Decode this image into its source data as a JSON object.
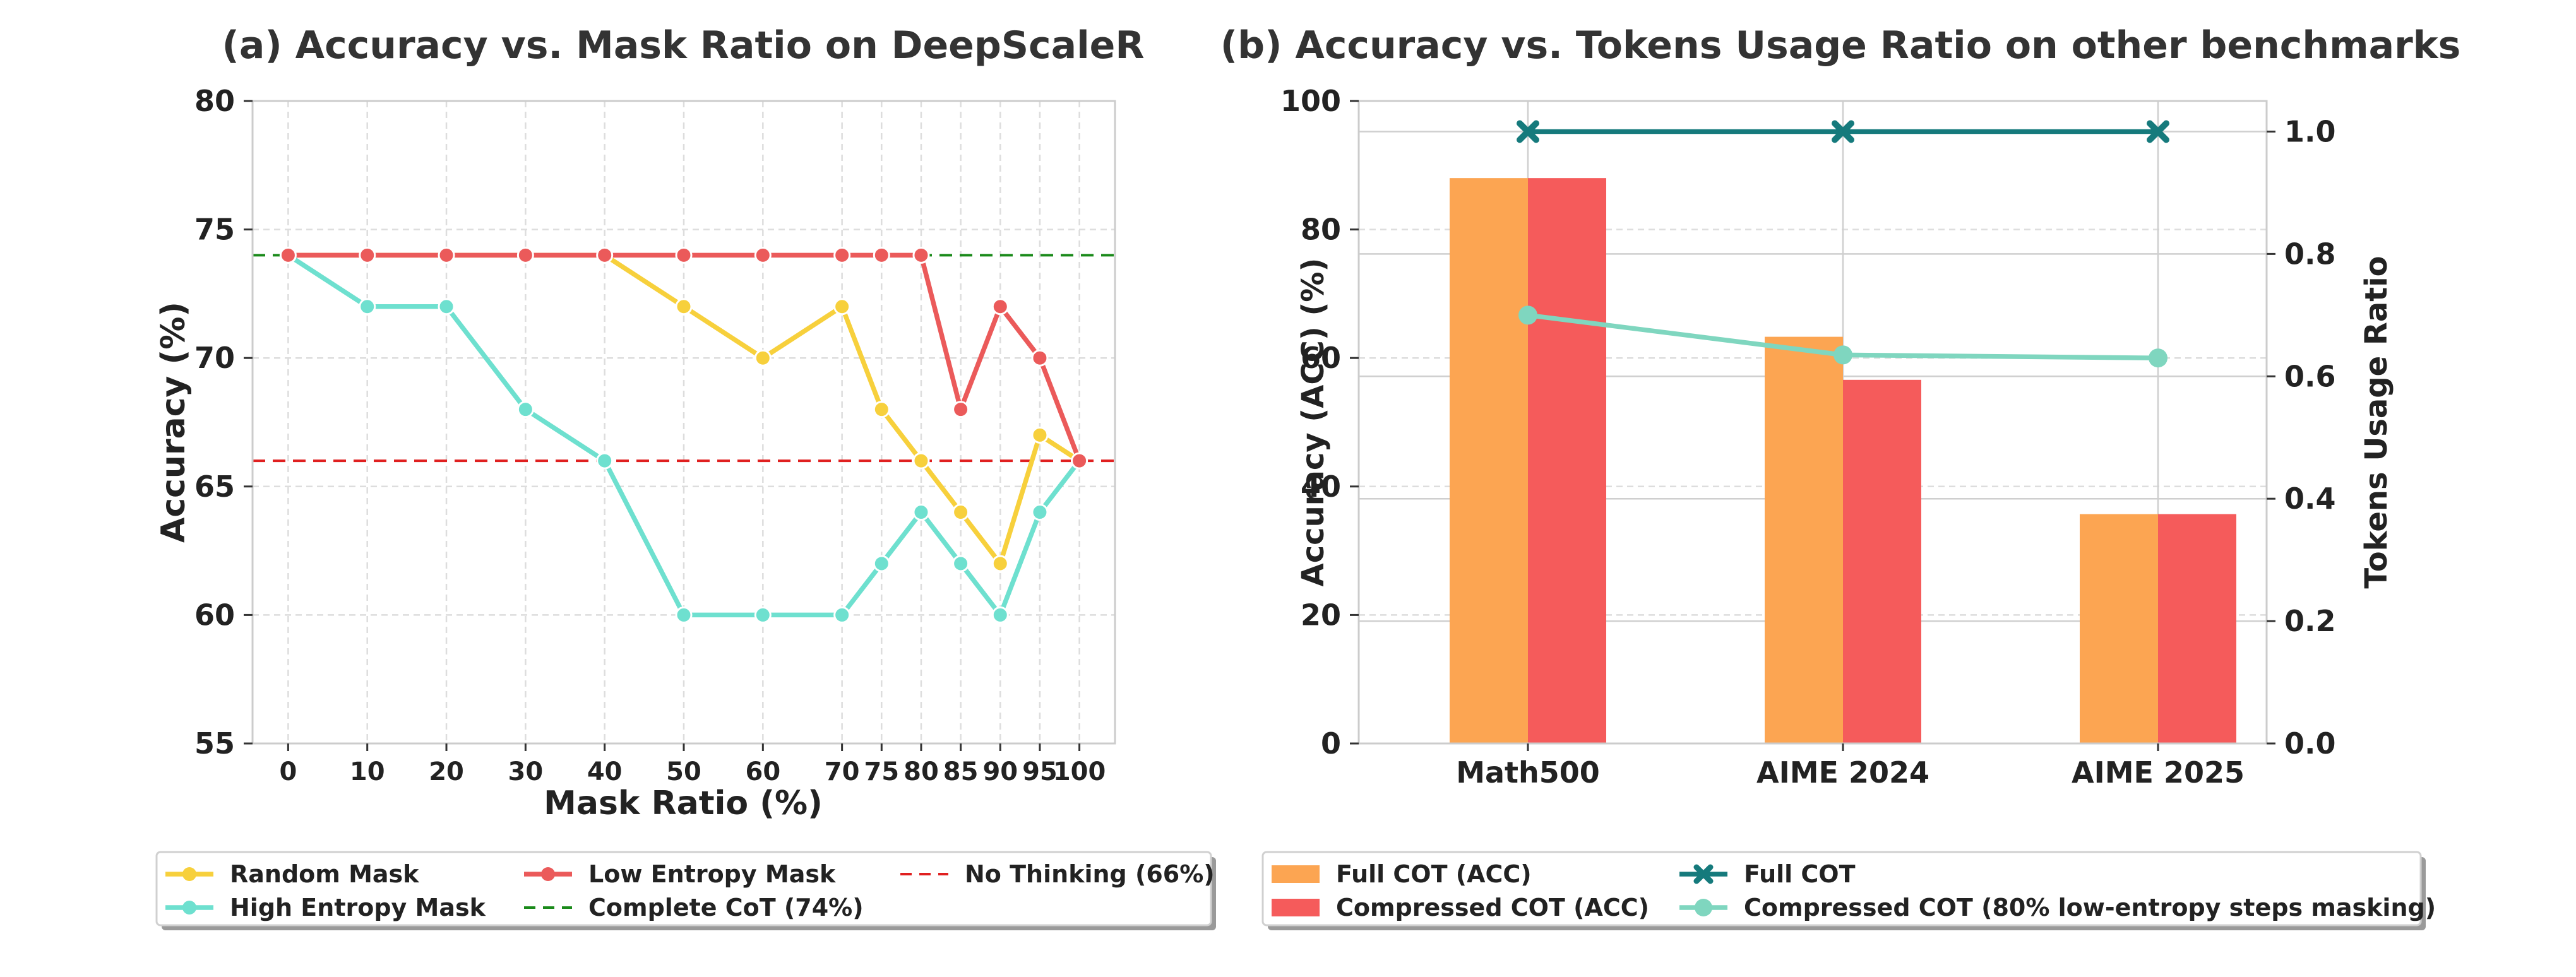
{
  "chart_data": [
    {
      "type": "line",
      "title": "(a) Accuracy vs. Mask Ratio on DeepScaleR",
      "xlabel": "Mask Ratio (%)",
      "ylabel": "Accuracy (%)",
      "ylim": [
        55,
        80
      ],
      "yticks": [
        "55",
        "60",
        "65",
        "70",
        "75",
        "80"
      ],
      "x": [
        0,
        10,
        20,
        30,
        40,
        50,
        60,
        70,
        75,
        80,
        85,
        90,
        95,
        100
      ],
      "xtick_labels": [
        "0",
        "10",
        "20",
        "30",
        "40",
        "50",
        "60",
        "70",
        "75",
        "80",
        "85",
        "90",
        "95",
        "100"
      ],
      "grid": true,
      "legend_position": "below",
      "series": [
        {
          "name": "Random Mask",
          "color": "#f7d03c",
          "marker": "circle",
          "x": [
            0,
            10,
            20,
            30,
            40,
            50,
            60,
            70,
            75,
            80,
            85,
            90,
            95,
            100
          ],
          "values": [
            74,
            74,
            74,
            74,
            74,
            72,
            70,
            72,
            68,
            66,
            64,
            62,
            67,
            66
          ]
        },
        {
          "name": "High Entropy Mask",
          "color": "#6ee0cf",
          "marker": "circle",
          "x": [
            0,
            10,
            20,
            30,
            40,
            50,
            60,
            70,
            75,
            80,
            85,
            90,
            95,
            100
          ],
          "values": [
            74,
            72,
            72,
            68,
            66,
            60,
            60,
            60,
            62,
            64,
            62,
            60,
            64,
            66
          ]
        },
        {
          "name": "Low Entropy Mask",
          "color": "#eb5a5a",
          "marker": "circle",
          "x": [
            0,
            10,
            20,
            30,
            40,
            50,
            60,
            70,
            75,
            80,
            85,
            90,
            95,
            100
          ],
          "values": [
            74,
            74,
            74,
            74,
            74,
            74,
            74,
            74,
            74,
            74,
            68,
            72,
            70,
            66
          ]
        }
      ],
      "reference_lines": [
        {
          "name": "Complete CoT (74%)",
          "value": 74,
          "color": "#1a8a1a",
          "style": "dashed"
        },
        {
          "name": "No Thinking (66%)",
          "value": 66,
          "color": "#e02020",
          "style": "dashed"
        }
      ]
    },
    {
      "type": "bar",
      "title": "(b) Accuracy vs. Tokens Usage Ratio on other benchmarks",
      "ylabel": "Accuracy (ACC) (%)",
      "ylabel_right": "Tokens Usage Ratio",
      "ylim": [
        0,
        100
      ],
      "ylim_right": [
        0,
        1.05
      ],
      "yticks": [
        "0",
        "20",
        "40",
        "60",
        "80",
        "100"
      ],
      "yticks_right": [
        "0.0",
        "0.2",
        "0.4",
        "0.6",
        "0.8",
        "1.0"
      ],
      "categories": [
        "Math500",
        "AIME 2024",
        "AIME 2025"
      ],
      "grid": true,
      "legend_position": "below",
      "series": [
        {
          "name": "Full COT (ACC)",
          "type": "bar",
          "axis": "left",
          "color": "#fca552",
          "values": [
            88,
            63.3,
            35.7
          ]
        },
        {
          "name": "Compressed COT (ACC)",
          "type": "bar",
          "axis": "left",
          "color": "#f55b5b",
          "values": [
            88,
            56.6,
            35.7
          ]
        },
        {
          "name": "Full COT",
          "type": "line",
          "axis": "right",
          "color": "#157a7c",
          "marker": "x",
          "values": [
            1.0,
            1.0,
            1.0
          ]
        },
        {
          "name": "Compressed COT (80% low-entropy steps masking)",
          "type": "line",
          "axis": "right",
          "color": "#7fd6bf",
          "marker": "circle",
          "values": [
            0.7,
            0.635,
            0.63
          ]
        }
      ]
    }
  ]
}
